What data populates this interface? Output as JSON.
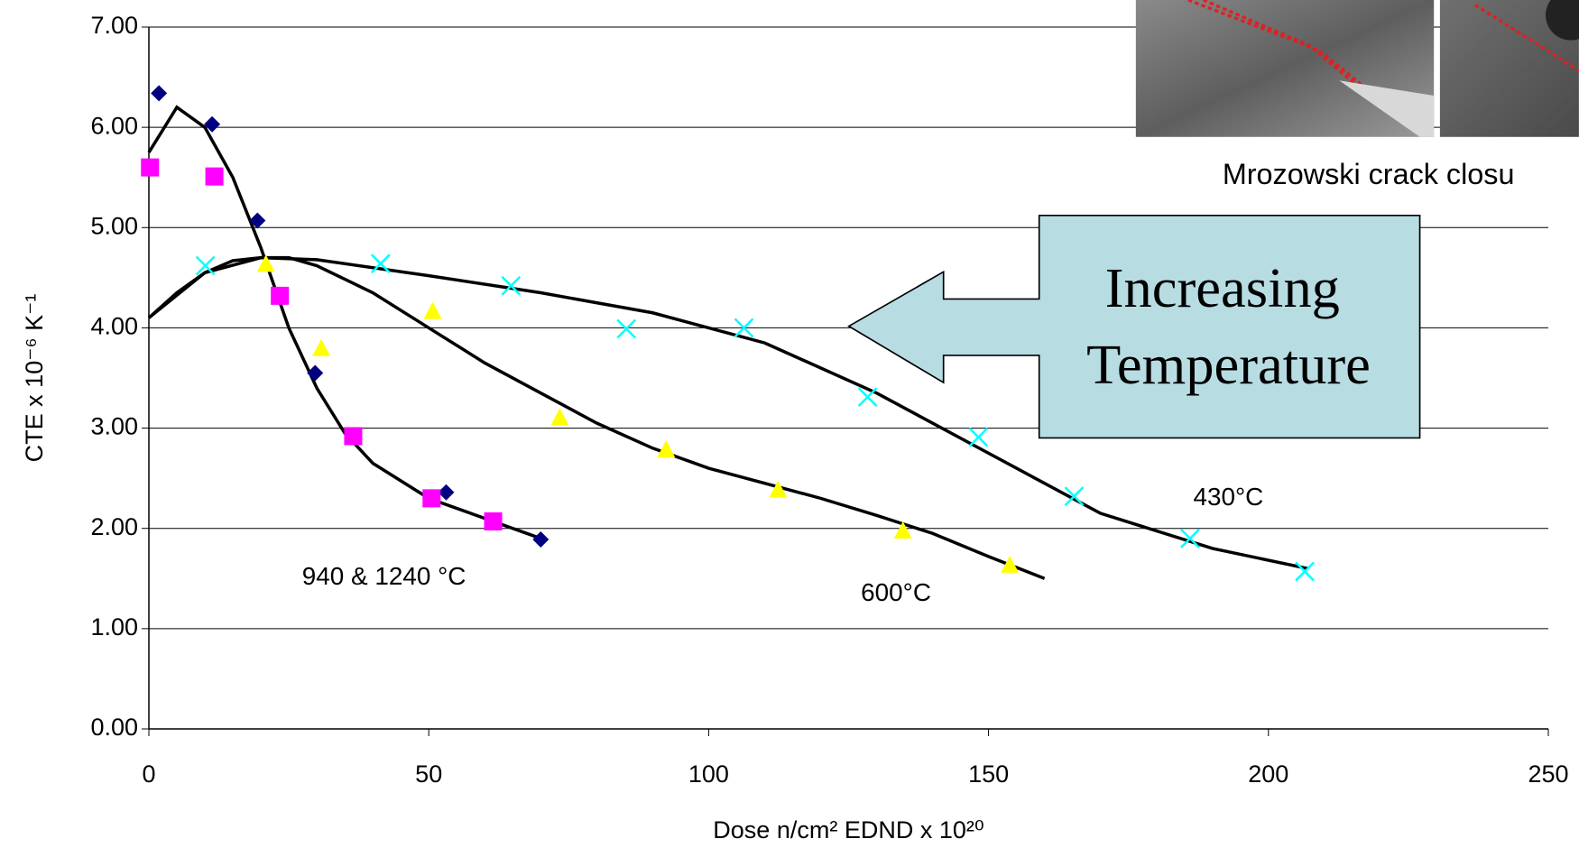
{
  "chart_data": {
    "type": "scatter",
    "x_label": "Dose n/cm² EDND x 10²⁰",
    "y_label": "CTE x 10⁻⁶ K⁻¹",
    "xlim": [
      0,
      250
    ],
    "xticks": [
      0,
      50,
      100,
      150,
      200,
      250
    ],
    "ylim": [
      0,
      7
    ],
    "yticks": [
      {
        "value": 0,
        "label": "0.00"
      },
      {
        "value": 1,
        "label": "1.00"
      },
      {
        "value": 2,
        "label": "2.00"
      },
      {
        "value": 3,
        "label": "3.00"
      },
      {
        "value": 4,
        "label": "4.00"
      },
      {
        "value": 5,
        "label": "5.00"
      },
      {
        "value": 6,
        "label": "6.00"
      },
      {
        "value": 7,
        "label": "7.00"
      }
    ],
    "grid": true,
    "series": [
      {
        "color": "#000080",
        "marker": "diamond",
        "x": [
          1.8,
          11.3,
          19.4,
          29.7,
          53.1,
          70
        ],
        "values": [
          6.34,
          6.03,
          5.07,
          3.55,
          2.36,
          1.89
        ]
      },
      {
        "color": "#ff00ff",
        "marker": "square",
        "x": [
          0.2,
          11.7,
          23.4,
          36.5,
          50.5,
          61.5
        ],
        "values": [
          5.6,
          5.51,
          4.32,
          2.92,
          2.3,
          2.07
        ]
      },
      {
        "color": "#ffff00",
        "marker": "triangle",
        "x": [
          20.9,
          30.8,
          50.7,
          73.4,
          92.4,
          112.4,
          134.7,
          153.8
        ],
        "values": [
          4.63,
          3.79,
          4.16,
          3.1,
          2.78,
          2.38,
          1.97,
          1.63
        ]
      },
      {
        "color": "#00ffff",
        "marker": "x",
        "x": [
          10.1,
          41.4,
          64.7,
          85.3,
          106.3,
          128.4,
          148.2,
          165.3,
          186,
          206.5
        ],
        "values": [
          4.62,
          4.64,
          4.42,
          3.99,
          4.0,
          3.31,
          2.91,
          2.32,
          1.9,
          1.57
        ]
      }
    ],
    "trendlines": [
      {
        "color": "#000000",
        "x": [
          0,
          5,
          10,
          15,
          20,
          25,
          30,
          35,
          40,
          50,
          60,
          70
        ],
        "values": [
          5.75,
          6.2,
          6.0,
          5.5,
          4.8,
          4.0,
          3.4,
          2.95,
          2.65,
          2.3,
          2.1,
          1.9
        ]
      },
      {
        "color": "#000000",
        "x": [
          0,
          5,
          10,
          15,
          20,
          25,
          30,
          40,
          50,
          60,
          70,
          80,
          90,
          100,
          110,
          120,
          130,
          140,
          150,
          160
        ],
        "values": [
          4.1,
          4.35,
          4.55,
          4.67,
          4.7,
          4.7,
          4.62,
          4.35,
          4.0,
          3.65,
          3.35,
          3.05,
          2.8,
          2.6,
          2.45,
          2.3,
          2.13,
          1.95,
          1.72,
          1.5
        ]
      },
      {
        "color": "#000000",
        "x": [
          0,
          10,
          20,
          30,
          50,
          70,
          90,
          110,
          130,
          150,
          170,
          190,
          207
        ],
        "values": [
          4.1,
          4.55,
          4.7,
          4.68,
          4.52,
          4.35,
          4.15,
          3.85,
          3.35,
          2.75,
          2.15,
          1.8,
          1.6
        ]
      }
    ],
    "annotations": [
      "940 & 1240 °C",
      "600°C",
      "430°C",
      "Mrozowski crack closu",
      "Increasing",
      "Temperature"
    ]
  }
}
